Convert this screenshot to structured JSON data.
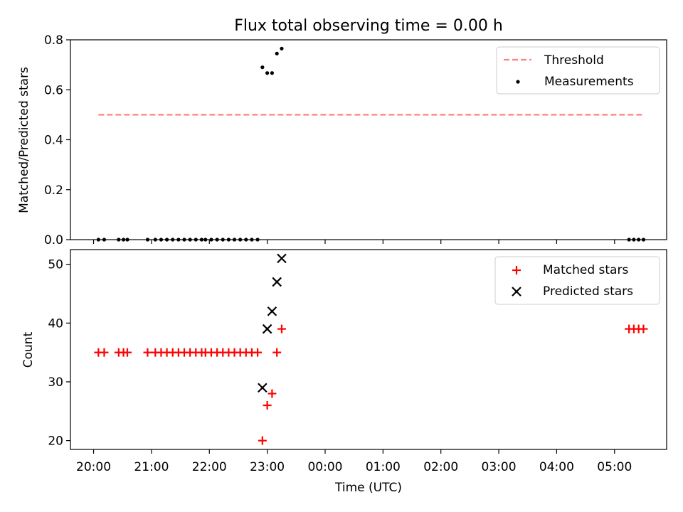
{
  "title": "Flux total observing time = 0.00 h",
  "chart_data": [
    {
      "type": "scatter",
      "panel": "top",
      "ylabel": "Matched/Predicted stars",
      "ylim": [
        0,
        0.8
      ],
      "yticks": [
        0.0,
        0.2,
        0.4,
        0.6,
        0.8
      ],
      "ytick_labels": [
        "0.0",
        "0.2",
        "0.4",
        "0.6",
        "0.8"
      ],
      "x_range_hours": [
        "19:36",
        "29:54"
      ],
      "threshold": {
        "name": "Threshold",
        "value": 0.5,
        "x_start": "20:05",
        "x_end": "05:30",
        "color": "#ff7f7f"
      },
      "series": [
        {
          "name": "Measurements",
          "marker": "dot",
          "color": "#000000",
          "points": [
            [
              "20:05",
              0.0
            ],
            [
              "20:11",
              0.0
            ],
            [
              "20:26",
              0.0
            ],
            [
              "20:31",
              0.0
            ],
            [
              "20:35",
              0.0
            ],
            [
              "20:56",
              0.0
            ],
            [
              "21:04",
              0.0
            ],
            [
              "21:10",
              0.0
            ],
            [
              "21:16",
              0.0
            ],
            [
              "21:22",
              0.0
            ],
            [
              "21:28",
              0.0
            ],
            [
              "21:34",
              0.0
            ],
            [
              "21:40",
              0.0
            ],
            [
              "21:46",
              0.0
            ],
            [
              "21:52",
              0.0
            ],
            [
              "21:56",
              0.0
            ],
            [
              "22:02",
              0.0
            ],
            [
              "22:08",
              0.0
            ],
            [
              "22:14",
              0.0
            ],
            [
              "22:20",
              0.0
            ],
            [
              "22:26",
              0.0
            ],
            [
              "22:32",
              0.0
            ],
            [
              "22:38",
              0.0
            ],
            [
              "22:44",
              0.0
            ],
            [
              "22:50",
              0.0
            ],
            [
              "22:55",
              0.69
            ],
            [
              "23:00",
              0.667
            ],
            [
              "23:05",
              0.667
            ],
            [
              "23:10",
              0.745
            ],
            [
              "23:15",
              0.765
            ],
            [
              "05:15",
              0.0
            ],
            [
              "05:20",
              0.0
            ],
            [
              "05:25",
              0.0
            ],
            [
              "05:30",
              0.0
            ]
          ]
        }
      ],
      "legend": {
        "placement": "top-right",
        "entries": [
          "Threshold",
          "Measurements"
        ]
      }
    },
    {
      "type": "scatter",
      "panel": "bottom",
      "ylabel": "Count",
      "xlabel": "Time (UTC)",
      "ylim": [
        18.5,
        52.5
      ],
      "yticks": [
        20,
        30,
        40,
        50
      ],
      "ytick_labels": [
        "20",
        "30",
        "40",
        "50"
      ],
      "xticks": [
        "20:00",
        "21:00",
        "22:00",
        "23:00",
        "00:00",
        "01:00",
        "02:00",
        "03:00",
        "04:00",
        "05:00"
      ],
      "series": [
        {
          "name": "Matched stars",
          "marker": "plus",
          "color": "#ff0000",
          "points": [
            [
              "20:05",
              35
            ],
            [
              "20:11",
              35
            ],
            [
              "20:26",
              35
            ],
            [
              "20:31",
              35
            ],
            [
              "20:35",
              35
            ],
            [
              "20:56",
              35
            ],
            [
              "21:04",
              35
            ],
            [
              "21:10",
              35
            ],
            [
              "21:16",
              35
            ],
            [
              "21:22",
              35
            ],
            [
              "21:28",
              35
            ],
            [
              "21:34",
              35
            ],
            [
              "21:40",
              35
            ],
            [
              "21:46",
              35
            ],
            [
              "21:52",
              35
            ],
            [
              "21:56",
              35
            ],
            [
              "22:02",
              35
            ],
            [
              "22:08",
              35
            ],
            [
              "22:14",
              35
            ],
            [
              "22:20",
              35
            ],
            [
              "22:26",
              35
            ],
            [
              "22:32",
              35
            ],
            [
              "22:38",
              35
            ],
            [
              "22:44",
              35
            ],
            [
              "22:50",
              35
            ],
            [
              "22:55",
              20
            ],
            [
              "23:00",
              26
            ],
            [
              "23:05",
              28
            ],
            [
              "23:10",
              35
            ],
            [
              "23:15",
              39
            ],
            [
              "05:15",
              39
            ],
            [
              "05:20",
              39
            ],
            [
              "05:25",
              39
            ],
            [
              "05:30",
              39
            ]
          ]
        },
        {
          "name": "Predicted stars",
          "marker": "x",
          "color": "#000000",
          "points": [
            [
              "22:55",
              29
            ],
            [
              "23:00",
              39
            ],
            [
              "23:05",
              42
            ],
            [
              "23:10",
              47
            ],
            [
              "23:15",
              51
            ]
          ]
        }
      ],
      "legend": {
        "placement": "top-right",
        "entries": [
          "Matched stars",
          "Predicted stars"
        ]
      }
    }
  ]
}
